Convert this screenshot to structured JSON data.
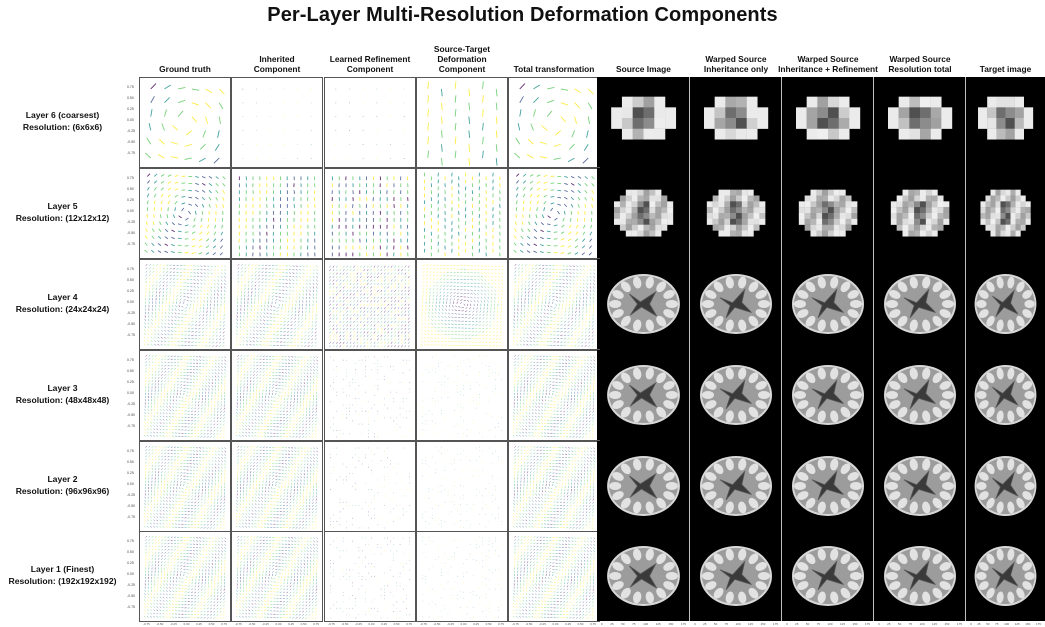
{
  "title": "Per-Layer Multi-Resolution Deformation Components",
  "columns": [
    "Ground truth",
    "Inherited\nComponent",
    "Learned Refinement\nComponent",
    "Source-Target\nDeformation\nComponent",
    "Total transformation",
    "Source Image",
    "Warped Source\nInheritance only",
    "Warped Source\nInheritance + Refinement",
    "Warped Source\nResolution total",
    "Target image"
  ],
  "rows": [
    {
      "label": "Layer 6 (coarsest)\nResolution: (6x6x6)"
    },
    {
      "label": "Layer 5\nResolution: (12x12x12)"
    },
    {
      "label": "Layer 4\nResolution: (24x24x24)"
    },
    {
      "label": "Layer 3\nResolution: (48x48x48)"
    },
    {
      "label": "Layer 2\nResolution: (96x96x96)"
    },
    {
      "label": "Layer 1 (Finest)\nResolution: (192x192x192)"
    }
  ],
  "y_ticks": [
    "0.75",
    "0.50",
    "0.25",
    "0.00",
    "-0.25",
    "-0.50",
    "-0.75"
  ],
  "x_ticks": [
    "-0.75",
    "-0.50",
    "-0.25",
    "0.00",
    "0.25",
    "0.50",
    "0.75"
  ],
  "img_x_ticks": [
    "0",
    "25",
    "50",
    "75",
    "100",
    "125",
    "150",
    "175"
  ],
  "colors": {
    "viridis": [
      "#440154",
      "#3b528b",
      "#21918c",
      "#5ec962",
      "#fde725"
    ],
    "background": "#000000"
  }
}
